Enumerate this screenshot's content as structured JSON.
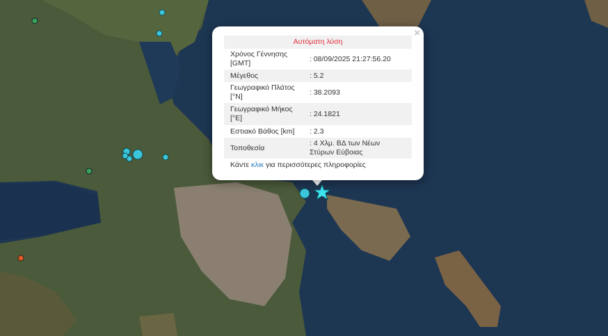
{
  "popup": {
    "title": "Αυτόματη λύση",
    "close_label": "×",
    "rows": [
      {
        "label": "Χρόνος Γέννησης [GMT]",
        "value": ": 08/09/2025 21:27:56.20"
      },
      {
        "label": "Μέγεθος",
        "value": ": 5.2"
      },
      {
        "label": "Γεωγραφικό Πλάτος [°N]",
        "value": ": 38.2093"
      },
      {
        "label": "Γεωγραφικό Μήκος [°E]",
        "value": ": 24.1821"
      },
      {
        "label": "Εστιακό Βάθος [km]",
        "value": ": 2.3"
      },
      {
        "label": "Τοποθεσία",
        "value": ": 4 Χλμ. ΒΔ των Νέων Στύρων Εύβοιας"
      }
    ],
    "more_prefix": "Κάντε ",
    "more_link": "κλικ",
    "more_suffix": " για περισσότερες πληροφορίες"
  },
  "colors": {
    "recent_marker": "#3cc6dc",
    "older_marker": "#3aa35a",
    "alert_marker": "#e0582a",
    "event_star": "#3fe3f0",
    "title_red": "#e0303a"
  }
}
